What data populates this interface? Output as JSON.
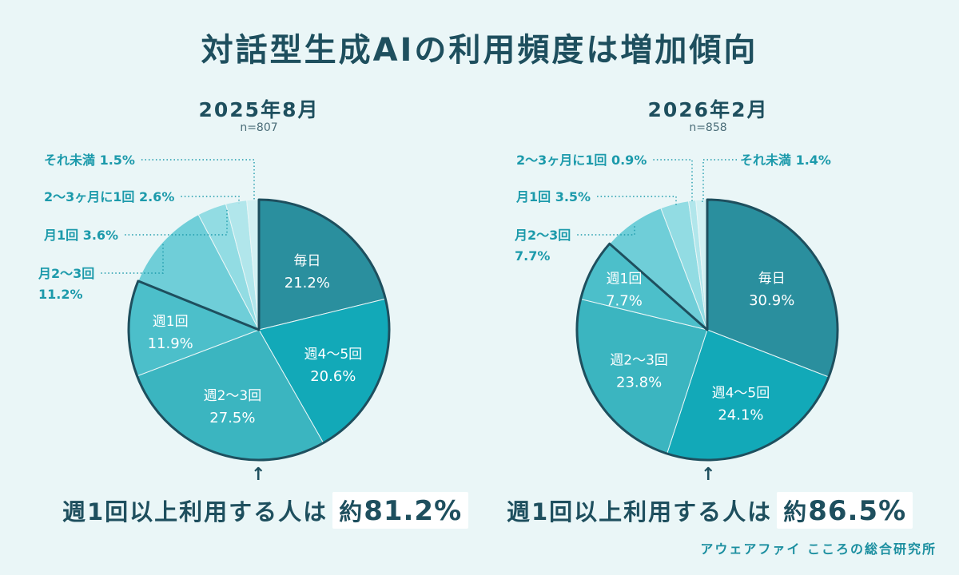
{
  "title": "対話型生成AIの利用頻度は増加傾向",
  "credit": "アウェアファイ こころの総合研究所",
  "chart_data": [
    {
      "type": "pie",
      "title": "2025年8月",
      "subtitle": "n=807",
      "series": [
        {
          "label": "毎日",
          "value": 21.2,
          "display": "21.2%",
          "color": "#2a8f9e"
        },
        {
          "label": "週4〜5回",
          "value": 20.6,
          "display": "20.6%",
          "color": "#12a9b8"
        },
        {
          "label": "週2〜3回",
          "value": 27.5,
          "display": "27.5%",
          "color": "#3bb5c0"
        },
        {
          "label": "週1回",
          "value": 11.9,
          "display": "11.9%",
          "color": "#4cbfca"
        },
        {
          "label": "月2〜3回",
          "value": 11.2,
          "display": "11.2%",
          "color": "#6fced8"
        },
        {
          "label": "月1回",
          "value": 3.6,
          "display": "3.6%",
          "color": "#92dce3"
        },
        {
          "label": "2〜3ヶ月に1回",
          "value": 2.6,
          "display": "2.6%",
          "color": "#b1e6eb"
        },
        {
          "label": "それ未満",
          "value": 1.5,
          "display": "1.5%",
          "color": "#d2f1f3"
        }
      ],
      "summary_text": "週1回以上利用する人は",
      "summary_prefix": "約",
      "summary_value": "81.2%"
    },
    {
      "type": "pie",
      "title": "2026年2月",
      "subtitle": "n=858",
      "series": [
        {
          "label": "毎日",
          "value": 30.9,
          "display": "30.9%",
          "color": "#2a8f9e"
        },
        {
          "label": "週4〜5回",
          "value": 24.1,
          "display": "24.1%",
          "color": "#12a9b8"
        },
        {
          "label": "週2〜3回",
          "value": 23.8,
          "display": "23.8%",
          "color": "#3bb5c0"
        },
        {
          "label": "週1回",
          "value": 7.7,
          "display": "7.7%",
          "color": "#4cbfca"
        },
        {
          "label": "月2〜3回",
          "value": 7.7,
          "display": "7.7%",
          "color": "#6fced8"
        },
        {
          "label": "月1回",
          "value": 3.5,
          "display": "3.5%",
          "color": "#92dce3"
        },
        {
          "label": "2〜3ヶ月に1回",
          "value": 0.9,
          "display": "0.9%",
          "color": "#b1e6eb"
        },
        {
          "label": "それ未満",
          "value": 1.4,
          "display": "1.4%",
          "color": "#d2f1f3"
        }
      ],
      "summary_text": "週1回以上利用する人は",
      "summary_prefix": "約",
      "summary_value": "86.5%"
    }
  ]
}
